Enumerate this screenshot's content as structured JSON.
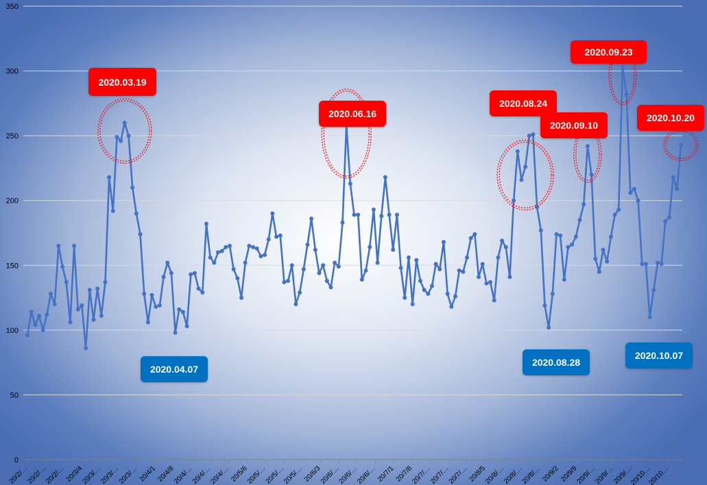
{
  "chart_data": {
    "type": "line",
    "ylim": [
      0,
      350
    ],
    "yticks": [
      0,
      50,
      100,
      150,
      200,
      250,
      300,
      350
    ],
    "grid": true,
    "line_color": "#4472c4",
    "x_tick_labels": [
      "20/2/…",
      "20/2/…",
      "20/2/…",
      "20/3/4",
      "20/3/…",
      "20/3/…",
      "20/3/…",
      "20/4/1",
      "20/4/8",
      "20/4/…",
      "20/4/…",
      "20/4/…",
      "20/5/6",
      "20/5/…",
      "20/5/…",
      "20/5/…",
      "20/6/3",
      "20/6/…",
      "20/6/…",
      "20/6/…",
      "20/7/1",
      "20/7/8",
      "20/7/…",
      "20/7/…",
      "20/7/…",
      "20/8/5",
      "20/8/…",
      "20/8/…",
      "20/8/…",
      "20/9/2",
      "20/9/9",
      "20/9/…",
      "20/9/…",
      "20/9/…",
      "20/10…",
      "20/10…"
    ],
    "series": [
      {
        "values": [
          96,
          114,
          104,
          111,
          100,
          112,
          128,
          120,
          165,
          149,
          137,
          106,
          165,
          116,
          119,
          86,
          131,
          108,
          132,
          111,
          137,
          218,
          192,
          249,
          246,
          260,
          250,
          210,
          190,
          174,
          128,
          106,
          127,
          118,
          119,
          141,
          152,
          144,
          98,
          116,
          114,
          103,
          143,
          144,
          132,
          129,
          182,
          156,
          152,
          160,
          161,
          164,
          165,
          147,
          140,
          125,
          152,
          165,
          164,
          163,
          157,
          158,
          170,
          190,
          172,
          173,
          137,
          138,
          150,
          120,
          129,
          147,
          166,
          186,
          162,
          144,
          150,
          138,
          133,
          152,
          149,
          183,
          258,
          213,
          189,
          189,
          139,
          146,
          164,
          193,
          152,
          188,
          218,
          189,
          162,
          189,
          148,
          125,
          156,
          120,
          154,
          138,
          131,
          128,
          134,
          151,
          147,
          168,
          128,
          118,
          126,
          146,
          145,
          156,
          171,
          174,
          141,
          151,
          136,
          137,
          123,
          156,
          169,
          164,
          141,
          200,
          238,
          216,
          226,
          250,
          251,
          195,
          177,
          119,
          102,
          128,
          174,
          173,
          139,
          164,
          166,
          172,
          185,
          197,
          242,
          220,
          155,
          145,
          162,
          153,
          172,
          189,
          193,
          303,
          282,
          206,
          209,
          200,
          151,
          151,
          110,
          131,
          152,
          151,
          184,
          187,
          218,
          209,
          243
        ]
      }
    ],
    "annotations": [
      {
        "label": "2020.03.19",
        "kind": "peak"
      },
      {
        "label": "2020.04.07",
        "kind": "trough"
      },
      {
        "label": "2020.06.16",
        "kind": "peak"
      },
      {
        "label": "2020.08.24",
        "kind": "peak"
      },
      {
        "label": "2020.08.28",
        "kind": "trough"
      },
      {
        "label": "2020.09.10",
        "kind": "peak"
      },
      {
        "label": "2020.09.23",
        "kind": "peak"
      },
      {
        "label": "2020.10.07",
        "kind": "trough"
      },
      {
        "label": "2020.10.20",
        "kind": "peak"
      }
    ],
    "colors": {
      "peak": "#ff0000",
      "trough": "#0070c0",
      "highlight_ring": "#ff0000"
    }
  }
}
